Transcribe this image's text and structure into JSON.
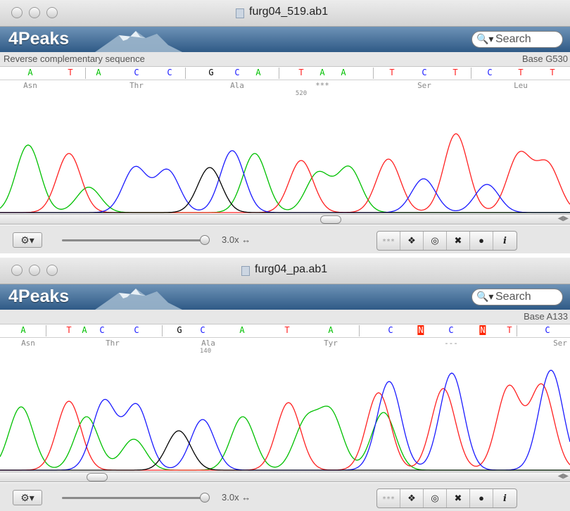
{
  "windows": [
    {
      "title": "furg04_519.ab1",
      "logo": "4Peaks",
      "search_placeholder": "Search",
      "info_label": "Reverse complementary sequence",
      "base_indicator": "Base G530",
      "bases": [
        "A",
        "T",
        "A",
        "C",
        "C",
        "G",
        "C",
        "A",
        "T",
        "A",
        "A",
        "T",
        "C",
        "T",
        "C",
        "T",
        "T"
      ],
      "amino_acids": [
        "Asn",
        "Thr",
        "Ala",
        "***",
        "Ser",
        "Leu"
      ],
      "position_label": "520",
      "zoom": "3.0x",
      "scroll_fraction": 0.58
    },
    {
      "title": "furg04_pa.ab1",
      "logo": "4Peaks",
      "search_placeholder": "Search",
      "info_label": "",
      "base_indicator": "Base A133",
      "bases": [
        "A",
        "T",
        "A",
        "C",
        "C",
        "G",
        "C",
        "A",
        "T",
        "A",
        "C",
        "N",
        "C",
        "N",
        "T",
        "C"
      ],
      "amino_acids": [
        "Asn",
        "Thr",
        "Ala",
        "Tyr",
        "---",
        "Ser"
      ],
      "position_label": "140",
      "zoom": "3.0x",
      "scroll_fraction": 0.17
    }
  ],
  "toolbar_buttons": [
    "***",
    "pin-icon",
    "pattern-icon",
    "cut-icon",
    "turtle-icon",
    "info-icon"
  ],
  "colors": {
    "A": "#00c000",
    "C": "#1a1aff",
    "G": "#000000",
    "T": "#ff2020",
    "N": "#ff2400"
  }
}
